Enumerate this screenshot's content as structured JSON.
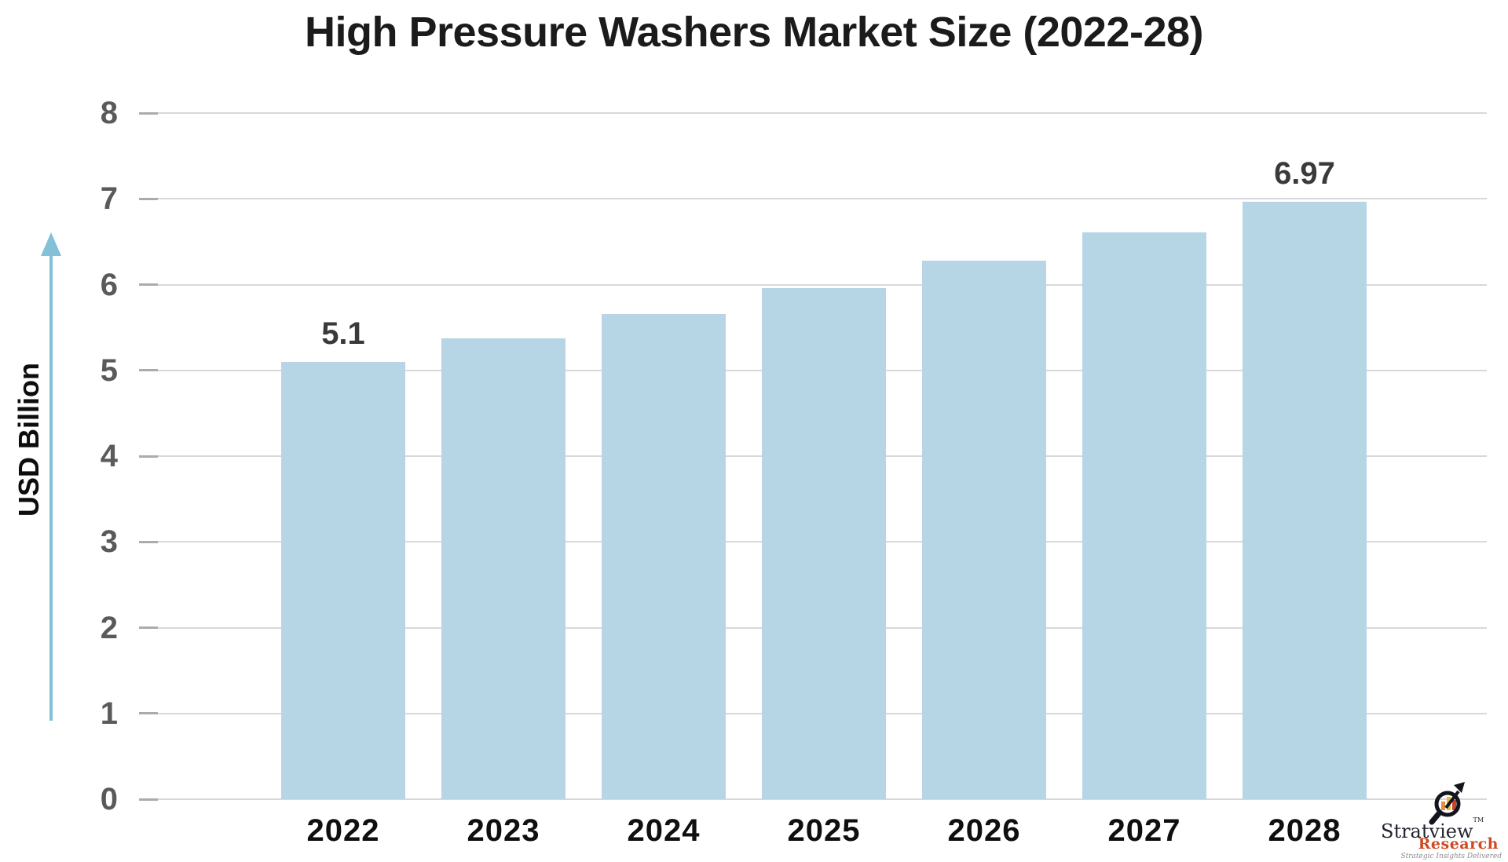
{
  "title": "High Pressure Washers Market Size (2022-28)",
  "y_axis": {
    "label": "USD Billion"
  },
  "chart_data": {
    "type": "bar",
    "title": "High Pressure Washers Market Size (2022-28)",
    "categories": [
      "2022",
      "2023",
      "2024",
      "2025",
      "2026",
      "2027",
      "2028"
    ],
    "values": [
      5.1,
      5.37,
      5.66,
      5.96,
      6.28,
      6.61,
      6.97
    ],
    "value_labels": [
      "5.1",
      "",
      "",
      "",
      "",
      "",
      "6.97"
    ],
    "xlabel": "",
    "ylabel": "USD Billion",
    "ylim": [
      0,
      8
    ],
    "yticks": [
      8,
      7,
      6,
      5,
      4,
      3,
      2,
      1,
      0
    ],
    "grid": true,
    "legend": "none",
    "bar_color": "#b6d6e5"
  },
  "colors": {
    "background": "#ffffff",
    "bar_fill": "#b6d6e5",
    "gridline": "#d8d8d8",
    "axis_arrow": "#84c0d7",
    "ytick_text": "#5a5a5a",
    "xtick_text": "#0f0f0f",
    "data_label_text": "#3a3a3a",
    "logo_dark": "#23232e",
    "logo_red": "#cf4a22"
  },
  "icons": {
    "axis_arrow": "up-arrow-icon",
    "logo_icon": "magnifier-growth-icon"
  },
  "logo": {
    "brand_top": "Stratview",
    "brand_tm": "TM",
    "brand_bottom": "Research",
    "tagline": "Strategic Insights Delivered"
  }
}
